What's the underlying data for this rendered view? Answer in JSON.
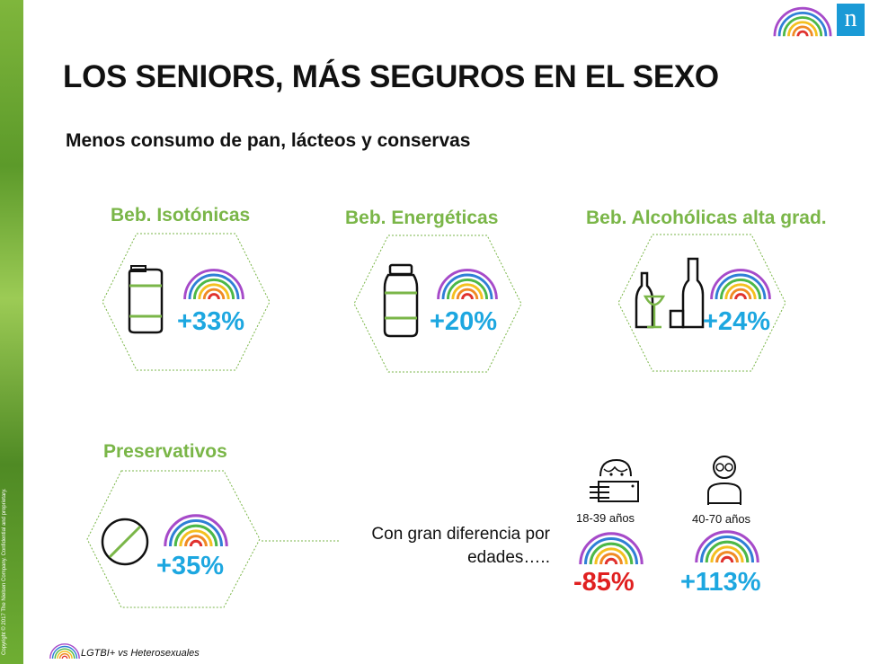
{
  "header": {
    "title": "LOS SENIORS, MÁS SEGUROS EN EL SEXO",
    "subtitle": "Menos consumo de pan, lácteos y conservas"
  },
  "brand": {
    "logo_letter": "n"
  },
  "categories": [
    {
      "label": "Beb. Isotónicas",
      "value": "+33%",
      "icon": "drink-can-icon"
    },
    {
      "label": "Beb. Energéticas",
      "value": "+20%",
      "icon": "bottle-icon"
    },
    {
      "label": "Beb. Alcohólicas alta grad.",
      "value": "+24%",
      "icon": "liquor-bottles-icon"
    },
    {
      "label": "Preservativos",
      "value": "+35%",
      "icon": "prohibited-icon"
    }
  ],
  "age_note": {
    "line1": "Con gran diferencia por",
    "line2": "edades….."
  },
  "age_groups": [
    {
      "label": "18-39 años",
      "value": "-85%",
      "icon": "young-person-icon"
    },
    {
      "label": "40-70 años",
      "value": "+113%",
      "icon": "senior-person-icon"
    }
  ],
  "legend": {
    "text": "LGTBI+ vs Heterosexuales"
  },
  "colors": {
    "accent_green": "#7ab648",
    "value_blue": "#1da7e0",
    "negative_red": "#e02020",
    "brand_blue": "#1a9ad6"
  }
}
